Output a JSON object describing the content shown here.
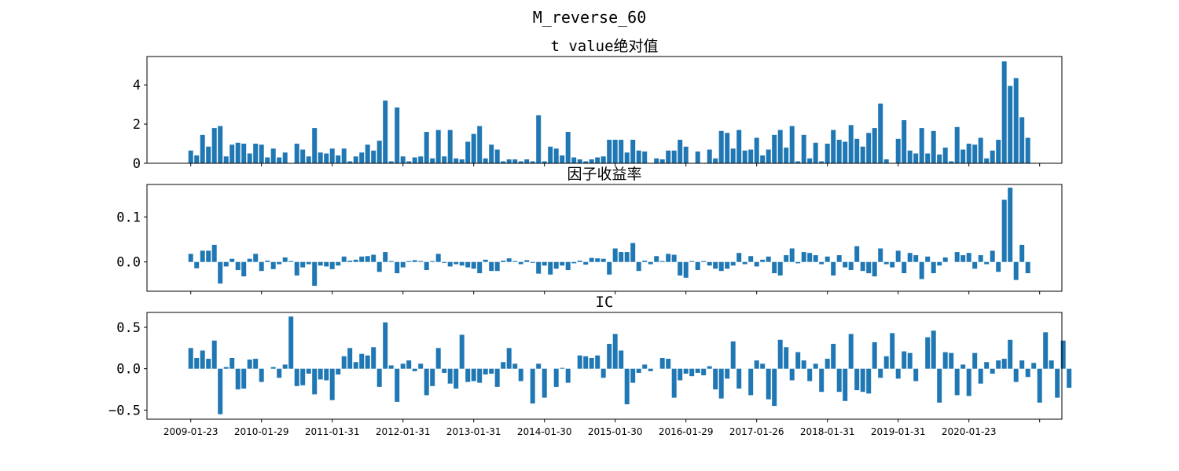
{
  "figure": {
    "suptitle": "M_reverse_60",
    "bar_color": "#1f77b4"
  },
  "chart_data": [
    {
      "type": "bar",
      "title": "t value绝对值",
      "ylim": [
        0,
        5.45
      ],
      "yticks": [
        0,
        2,
        4
      ],
      "ytick_labels": [
        "0",
        "2",
        "4"
      ],
      "values": [
        0.65,
        0.4,
        1.45,
        0.85,
        1.8,
        1.9,
        0.35,
        0.95,
        1.05,
        1.0,
        0.5,
        1.0,
        0.95,
        0.3,
        0.75,
        0.3,
        0.55,
        0.0,
        1.0,
        0.7,
        0.35,
        1.8,
        0.55,
        0.5,
        0.75,
        0.4,
        0.75,
        0.1,
        0.35,
        0.55,
        0.95,
        0.65,
        1.15,
        3.2,
        0.1,
        2.85,
        0.35,
        0.1,
        0.3,
        0.35,
        1.6,
        0.25,
        1.7,
        0.35,
        1.7,
        0.25,
        0.2,
        1.1,
        1.5,
        1.9,
        0.25,
        0.95,
        0.7,
        0.1,
        0.2,
        0.2,
        0.1,
        0.2,
        0.1,
        2.45,
        0.1,
        0.85,
        0.75,
        0.4,
        1.6,
        0.3,
        0.2,
        0.1,
        0.2,
        0.3,
        0.35,
        1.2,
        1.2,
        1.2,
        0.55,
        1.2,
        0.65,
        0.6,
        0.0,
        0.25,
        0.2,
        0.65,
        0.65,
        1.2,
        0.85,
        0.0,
        0.6,
        0.0,
        0.7,
        0.25,
        1.65,
        1.55,
        0.75,
        1.7,
        0.65,
        0.7,
        1.3,
        0.4,
        0.7,
        1.45,
        1.7,
        0.8,
        1.9,
        0.1,
        1.45,
        0.25,
        1.05,
        0.1,
        1.0,
        1.7,
        1.2,
        1.1,
        1.95,
        1.25,
        0.85,
        1.55,
        1.8,
        3.05,
        0.2,
        0.0,
        1.25,
        2.2,
        0.65,
        0.5,
        1.8,
        0.5,
        1.65,
        0.45,
        0.8,
        0.1,
        1.85,
        0.7,
        1.0,
        0.95,
        1.3,
        0.25,
        0.65,
        1.2,
        5.2,
        3.95,
        4.35,
        2.35,
        1.3
      ]
    },
    {
      "type": "bar",
      "title": "因子收益率",
      "ylim": [
        -0.065,
        0.172
      ],
      "yticks": [
        0.0,
        0.1
      ],
      "ytick_labels": [
        "0.0",
        "0.1"
      ],
      "values": [
        0.018,
        -0.014,
        0.025,
        0.025,
        0.038,
        -0.048,
        -0.01,
        0.007,
        -0.018,
        -0.032,
        0.007,
        0.018,
        -0.02,
        0.003,
        -0.016,
        -0.005,
        0.01,
        0.002,
        -0.03,
        -0.012,
        -0.005,
        -0.053,
        -0.008,
        -0.01,
        -0.016,
        -0.008,
        0.012,
        0.003,
        0.005,
        0.012,
        0.013,
        0.016,
        -0.022,
        0.022,
        0.002,
        -0.025,
        -0.012,
        0.002,
        0.004,
        0.002,
        -0.018,
        0.002,
        0.018,
        -0.002,
        -0.01,
        -0.005,
        -0.008,
        -0.012,
        -0.015,
        -0.025,
        0.005,
        -0.02,
        -0.02,
        0.003,
        0.008,
        0.002,
        -0.005,
        0.004,
        -0.002,
        -0.026,
        -0.008,
        -0.028,
        -0.015,
        -0.008,
        -0.018,
        -0.003,
        0.003,
        -0.006,
        0.009,
        0.008,
        0.007,
        -0.028,
        0.03,
        0.022,
        0.022,
        0.042,
        -0.02,
        0.003,
        -0.005,
        0.013,
        0.002,
        0.018,
        0.016,
        -0.03,
        -0.035,
        0.002,
        -0.018,
        0.002,
        -0.008,
        -0.015,
        -0.02,
        -0.015,
        -0.008,
        0.02,
        -0.005,
        0.013,
        -0.01,
        0.005,
        0.012,
        -0.025,
        -0.03,
        0.015,
        0.03,
        -0.003,
        0.022,
        0.02,
        0.015,
        -0.005,
        0.012,
        -0.03,
        0.015,
        -0.012,
        -0.018,
        0.035,
        -0.02,
        -0.025,
        -0.032,
        0.03,
        -0.005,
        -0.012,
        0.025,
        -0.025,
        0.02,
        0.015,
        -0.038,
        0.012,
        -0.025,
        -0.008,
        0.01,
        0.0,
        0.022,
        0.015,
        0.02,
        -0.015,
        0.015,
        -0.005,
        0.025,
        -0.022,
        0.138,
        0.165,
        -0.04,
        0.038,
        -0.025
      ]
    },
    {
      "type": "bar",
      "title": "IC",
      "ylim": [
        -0.61,
        0.68
      ],
      "yticks": [
        -0.5,
        0.0,
        0.5
      ],
      "ytick_labels": [
        "−0.5",
        "0.0",
        "0.5"
      ],
      "values": [
        0.25,
        0.13,
        0.22,
        0.12,
        0.34,
        -0.55,
        0.02,
        0.13,
        -0.25,
        -0.24,
        0.11,
        0.12,
        -0.16,
        0.0,
        0.02,
        -0.11,
        0.05,
        0.63,
        -0.21,
        -0.2,
        -0.06,
        -0.31,
        -0.13,
        -0.14,
        -0.38,
        -0.07,
        0.15,
        0.25,
        0.08,
        0.18,
        0.16,
        0.26,
        -0.22,
        0.56,
        0.04,
        -0.4,
        0.06,
        0.1,
        -0.03,
        0.06,
        -0.32,
        -0.21,
        0.25,
        -0.05,
        -0.18,
        -0.24,
        0.41,
        -0.16,
        -0.15,
        -0.17,
        -0.07,
        -0.06,
        -0.22,
        0.08,
        0.25,
        0.06,
        -0.15,
        0.0,
        -0.42,
        0.06,
        -0.35,
        0.0,
        -0.22,
        0.01,
        -0.17,
        0.0,
        0.16,
        0.15,
        0.13,
        0.16,
        -0.11,
        0.3,
        0.42,
        0.22,
        -0.43,
        -0.17,
        -0.05,
        0.05,
        -0.03,
        0.0,
        0.13,
        0.12,
        -0.35,
        -0.14,
        -0.06,
        -0.09,
        -0.05,
        -0.08,
        0.03,
        -0.25,
        -0.36,
        -0.12,
        0.33,
        -0.24,
        0.0,
        -0.32,
        0.1,
        0.06,
        -0.37,
        -0.45,
        0.35,
        0.26,
        -0.14,
        0.2,
        0.1,
        -0.15,
        0.06,
        -0.28,
        0.12,
        0.3,
        -0.28,
        -0.39,
        0.42,
        -0.26,
        -0.28,
        -0.3,
        0.32,
        -0.11,
        0.15,
        0.43,
        -0.12,
        0.21,
        0.19,
        -0.15,
        0.0,
        0.38,
        0.46,
        -0.41,
        0.2,
        0.19,
        -0.32,
        0.05,
        -0.33,
        0.19,
        -0.18,
        0.08,
        -0.06,
        0.1,
        0.12,
        0.35,
        -0.16,
        0.1,
        -0.1,
        0.07,
        -0.41,
        0.44,
        0.1,
        -0.35,
        0.34,
        -0.23
      ]
    }
  ],
  "x_axis": {
    "tick_labels": [
      "2009-01-23",
      "2010-01-29",
      "2011-01-31",
      "2012-01-31",
      "2013-01-31",
      "2014-01-30",
      "2015-01-30",
      "2016-01-29",
      "2017-01-26",
      "2018-01-31",
      "2019-01-31",
      "2020-01-23",
      ""
    ]
  }
}
